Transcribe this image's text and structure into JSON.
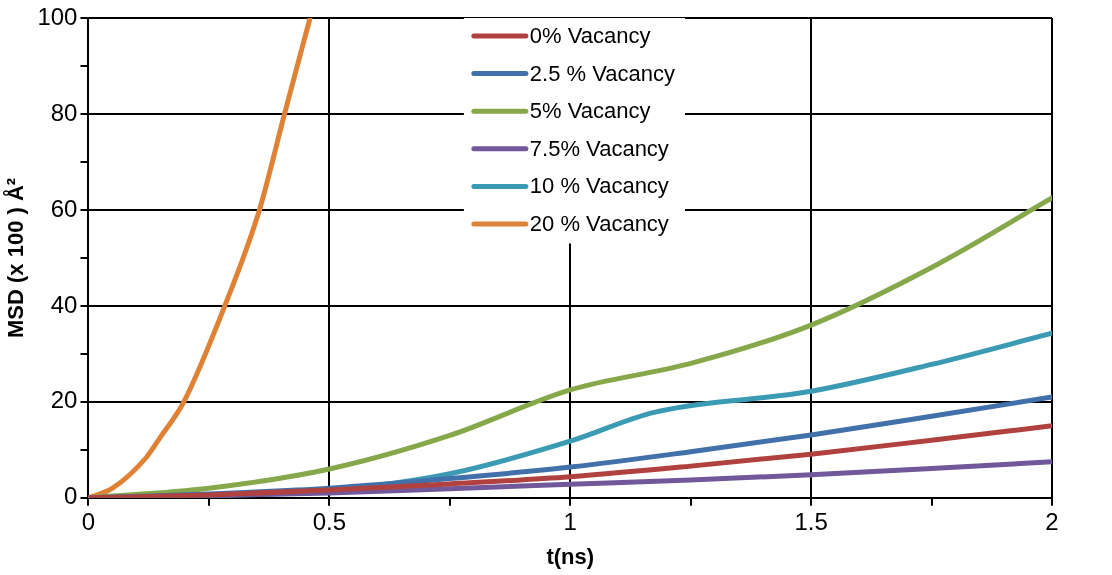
{
  "chart_data": {
    "type": "line",
    "xlabel": "t(ns)",
    "ylabel": "MSD (x 100 ) Å²",
    "xlim": [
      0,
      2
    ],
    "ylim": [
      0,
      100
    ],
    "xticks": [
      0,
      {
        "value": 0.25,
        "label": null
      },
      0.5,
      {
        "value": 0.75,
        "label": null
      },
      1,
      {
        "value": 1.25,
        "label": null
      },
      1.5,
      {
        "value": 1.75,
        "label": null
      },
      2
    ],
    "yticks": [
      0,
      {
        "value": 10,
        "label": null
      },
      20,
      {
        "value": 30,
        "label": null
      },
      40,
      {
        "value": 50,
        "label": null
      },
      60,
      {
        "value": 70,
        "label": null
      },
      80,
      {
        "value": 90,
        "label": null
      },
      100
    ],
    "grid": true,
    "legend": "top",
    "marker": "none",
    "line_style": "solid",
    "series": [
      {
        "name": "0% Vacancy",
        "color": "#b0413e",
        "x": [
          0,
          0.25,
          0.5,
          0.75,
          1,
          1.25,
          1.5,
          1.75,
          2
        ],
        "values": [
          0,
          0.6,
          1.6,
          2.9,
          4.4,
          6.6,
          9.1,
          12,
          15
        ]
      },
      {
        "name": "2.5 % Vacancy",
        "color": "#4170aa",
        "x": [
          0,
          0.25,
          0.5,
          0.75,
          1,
          1.25,
          1.5,
          1.75,
          2
        ],
        "values": [
          0,
          0.8,
          2,
          4,
          6.4,
          9.6,
          13.1,
          17,
          21
        ]
      },
      {
        "name": "5% Vacancy",
        "color": "#86a84a",
        "x": [
          0,
          0.25,
          0.5,
          0.75,
          1,
          1.25,
          1.5,
          1.75,
          2
        ],
        "values": [
          0,
          2,
          6,
          13,
          22.5,
          28,
          36,
          48,
          62.5
        ]
      },
      {
        "name": "7.5% Vacancy",
        "color": "#71589a",
        "x": [
          0,
          0.25,
          0.5,
          0.75,
          1,
          1.25,
          1.5,
          1.75,
          2
        ],
        "values": [
          0,
          0.4,
          1,
          1.9,
          2.8,
          3.7,
          4.8,
          6.1,
          7.5
        ]
      },
      {
        "name": "10 % Vacancy",
        "color": "#3b9bb5",
        "x": [
          0,
          0.25,
          0.5,
          0.75,
          1,
          1.174,
          1.5,
          1.75,
          2
        ],
        "values": [
          0,
          0.4,
          1.5,
          5,
          11.8,
          17.8,
          22.2,
          27.8,
          34.3
        ]
      },
      {
        "name": "20 % Vacancy",
        "color": "#e08236",
        "x": [
          0,
          0.05,
          0.12,
          0.149,
          0.198,
          0.283,
          0.354,
          0.407,
          0.46
        ],
        "values": [
          0,
          2,
          8.4,
          12.6,
          20,
          40,
          59.7,
          80,
          100
        ]
      }
    ]
  }
}
